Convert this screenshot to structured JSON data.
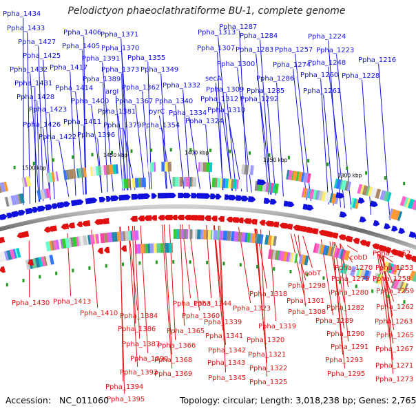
{
  "title": "Pelodictyon phaeoclathratiforme BU-1, complete genome",
  "footer": {
    "accession_label": "Accession:",
    "accession": "NC_011060",
    "topology_label": "Topology:",
    "topology": "circular",
    "length_label": "Length:",
    "length": "3,018,238 bp",
    "genes_label": "Genes:",
    "genes": "2,765"
  },
  "scale_labels": [
    "1300 kbp",
    "1350 kbp",
    "1400 kbp",
    "1450 kbp",
    "1500 kbp"
  ],
  "forward_genes": [
    "Ppha_1434",
    "Ppha_1433",
    "Ppha_1427",
    "Ppha_1425",
    "Ppha_1432",
    "Ppha_1431",
    "Ppha_1428",
    "Ppha_1423",
    "Ppha_1426",
    "Ppha_1422",
    "Ppha_1406",
    "Ppha_1405",
    "Ppha_1417",
    "Ppha_1414",
    "Ppha_1400",
    "Ppha_1411",
    "Ppha_1396",
    "Ppha_1371",
    "Ppha_1370",
    "Ppha_1391",
    "Ppha_1373",
    "Ppha_1389",
    "argI",
    "Ppha_1381",
    "Ppha_1379",
    "Ppha_1355",
    "Ppha_1349",
    "Ppha_1362",
    "Ppha_1367",
    "pyrC",
    "Ppha_1354",
    "Ppha_1332",
    "Ppha_1340",
    "Ppha_1334",
    "Ppha_1313",
    "Ppha_1307",
    "secA",
    "Ppha_1309",
    "Ppha_1312",
    "Ppha_1310",
    "Ppha_1324",
    "Ppha_1287",
    "Ppha_1284",
    "Ppha_1283",
    "Ppha_1300",
    "Ppha_1286",
    "Ppha_1285",
    "Ppha_1292",
    "Ppha_1274",
    "Ppha_1257",
    "Ppha_1260",
    "Ppha_1261",
    "Ppha_1224",
    "Ppha_1223",
    "Ppha_1248",
    "Ppha_1228",
    "Ppha_1216"
  ],
  "reverse_genes": [
    "Ppha_1430",
    "Ppha_1413",
    "Ppha_1410",
    "Ppha_1384",
    "Ppha_1386",
    "Ppha_1387",
    "Ppha_1390",
    "Ppha_1392",
    "Ppha_1394",
    "Ppha_1395",
    "Ppha_1363",
    "Ppha_1360",
    "Ppha_1365",
    "Ppha_1366",
    "Ppha_1368",
    "Ppha_1369",
    "Ppha_1344",
    "Ppha_1339",
    "Ppha_1341",
    "Ppha_1342",
    "Ppha_1343",
    "Ppha_1345",
    "Ppha_1318",
    "Ppha_1323",
    "Ppha_1319",
    "Ppha_1320",
    "Ppha_1321",
    "Ppha_1322",
    "Ppha_1325",
    "cobT",
    "Ppha_1298",
    "Ppha_1301",
    "Ppha_1308",
    "cobD",
    "Ppha_1270",
    "Ppha_1279",
    "Ppha_1280",
    "Ppha_1282",
    "Ppha_1289",
    "Ppha_1290",
    "Ppha_1291",
    "Ppha_1293",
    "Ppha_1295",
    "Ppha_1252",
    "Ppha_1253",
    "Ppha_1258",
    "Ppha_1259",
    "Ppha_1262",
    "Ppha_1263",
    "Ppha_1265",
    "Ppha_1267",
    "Ppha_1271",
    "Ppha_1273"
  ],
  "colors": {
    "forward": "#1010dd",
    "reverse": "#e01010",
    "backbone": "#777777",
    "tick": "#229922",
    "cog_palette": [
      "#ff44aa",
      "#00cccc",
      "#33cc33",
      "#ff9933",
      "#9999ff",
      "#cccccc",
      "#ffee66",
      "#cc66ff",
      "#66ffcc",
      "#888888",
      "#2288aa",
      "#aa8866",
      "#eeeeee",
      "#66cc99",
      "#ff66cc",
      "#3377ff"
    ]
  }
}
